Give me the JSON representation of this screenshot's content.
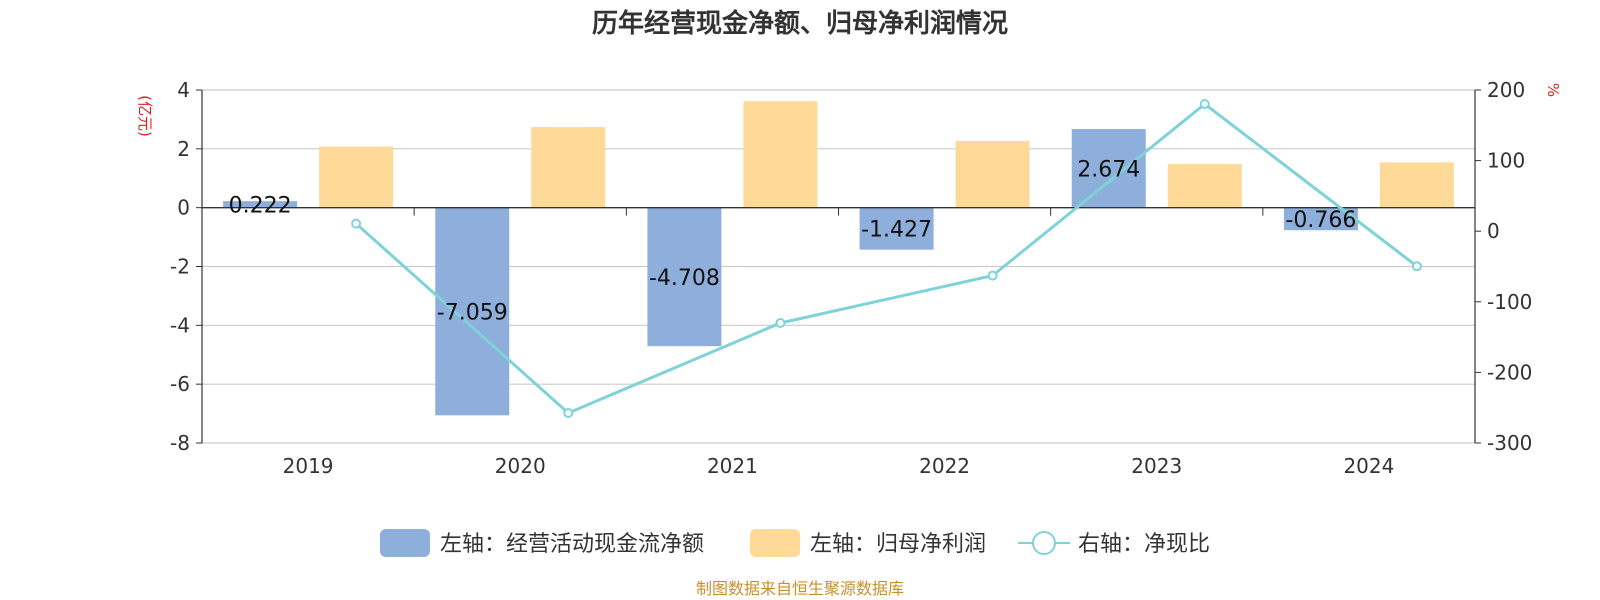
{
  "chart_data": {
    "type": "bar",
    "title": "历年经营现金净额、归母净利润情况",
    "categories": [
      "2019",
      "2020",
      "2021",
      "2022",
      "2023",
      "2024"
    ],
    "left_axis": {
      "unit": "(亿元)",
      "ylim": [
        -8,
        4
      ],
      "ticks": [
        "4",
        "2",
        "0",
        "-2",
        "-4",
        "-6",
        "-8"
      ]
    },
    "right_axis": {
      "unit": "%",
      "ylim": [
        -300,
        200
      ],
      "ticks": [
        "200",
        "100",
        "0",
        "-100",
        "-200",
        "-300"
      ]
    },
    "series": [
      {
        "name": "左轴：经营活动现金流净额",
        "type": "bar",
        "axis": "left",
        "color": "#8eaedb",
        "values": [
          0.222,
          -7.059,
          -4.708,
          -1.427,
          2.674,
          -0.766
        ],
        "labels": [
          "0.222",
          "-7.059",
          "-4.708",
          "-1.427",
          "2.674",
          "-0.766"
        ]
      },
      {
        "name": "左轴：归母净利润",
        "type": "bar",
        "axis": "left",
        "color": "#ffd998",
        "values": [
          2.08,
          2.74,
          3.62,
          2.27,
          1.48,
          1.54
        ]
      },
      {
        "name": "右轴：净现比",
        "type": "line",
        "axis": "right",
        "color": "#7fd3d8",
        "values": [
          10.7,
          -257.5,
          -130.0,
          -62.9,
          180.1,
          -49.7
        ]
      }
    ],
    "grid": true,
    "legend_position": "bottom"
  },
  "source": "制图数据来自恒生聚源数据库",
  "colors": {
    "accent_red": "#e02020",
    "source_text": "#c8902c",
    "axis": "#333333",
    "grid": "#cccccc"
  }
}
